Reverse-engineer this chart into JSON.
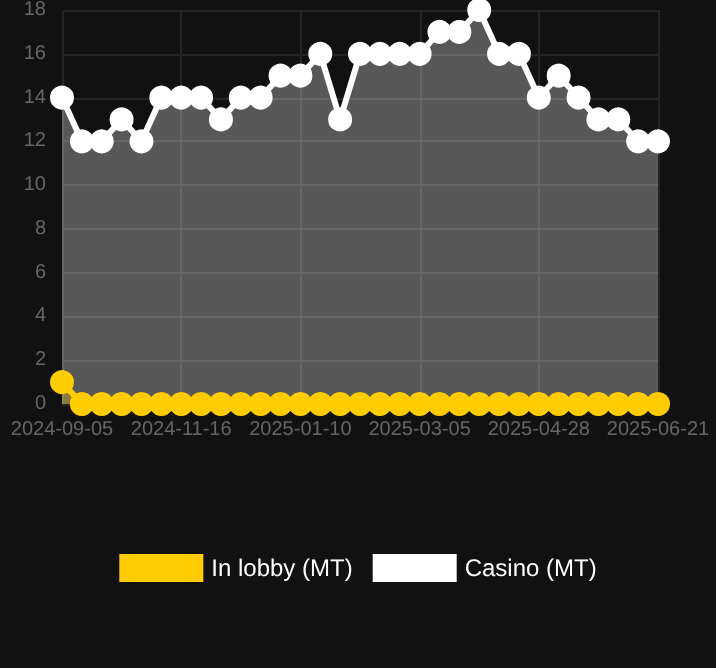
{
  "chart_data": {
    "type": "area",
    "categories": [
      "2024-09-05",
      null,
      null,
      null,
      null,
      null,
      "2024-11-16",
      null,
      null,
      null,
      null,
      null,
      "2025-01-10",
      null,
      null,
      null,
      null,
      null,
      "2025-03-05",
      null,
      null,
      null,
      null,
      null,
      "2025-04-28",
      null,
      null,
      null,
      null,
      null,
      "2025-06-21"
    ],
    "series": [
      {
        "name": "In lobby (MT)",
        "color": "#ffcc00",
        "values": [
          1,
          0,
          0,
          0,
          0,
          0,
          0,
          0,
          0,
          0,
          0,
          0,
          0,
          0,
          0,
          0,
          0,
          0,
          0,
          0,
          0,
          0,
          0,
          0,
          0,
          0,
          0,
          0,
          0,
          0,
          0
        ]
      },
      {
        "name": "Casino (MT)",
        "color": "#ffffff",
        "values": [
          14,
          12,
          12,
          13,
          12,
          14,
          14,
          14,
          13,
          14,
          14,
          15,
          15,
          16,
          13,
          16,
          16,
          16,
          16,
          17,
          17,
          18,
          16,
          16,
          14,
          15,
          14,
          13,
          13,
          12,
          12
        ]
      }
    ],
    "ylim": [
      0,
      18
    ],
    "yticks": [
      0,
      2,
      4,
      6,
      8,
      10,
      12,
      14,
      16,
      18
    ],
    "grid": true,
    "legend": "bottom",
    "marker": "circle",
    "line_style": "solid"
  }
}
